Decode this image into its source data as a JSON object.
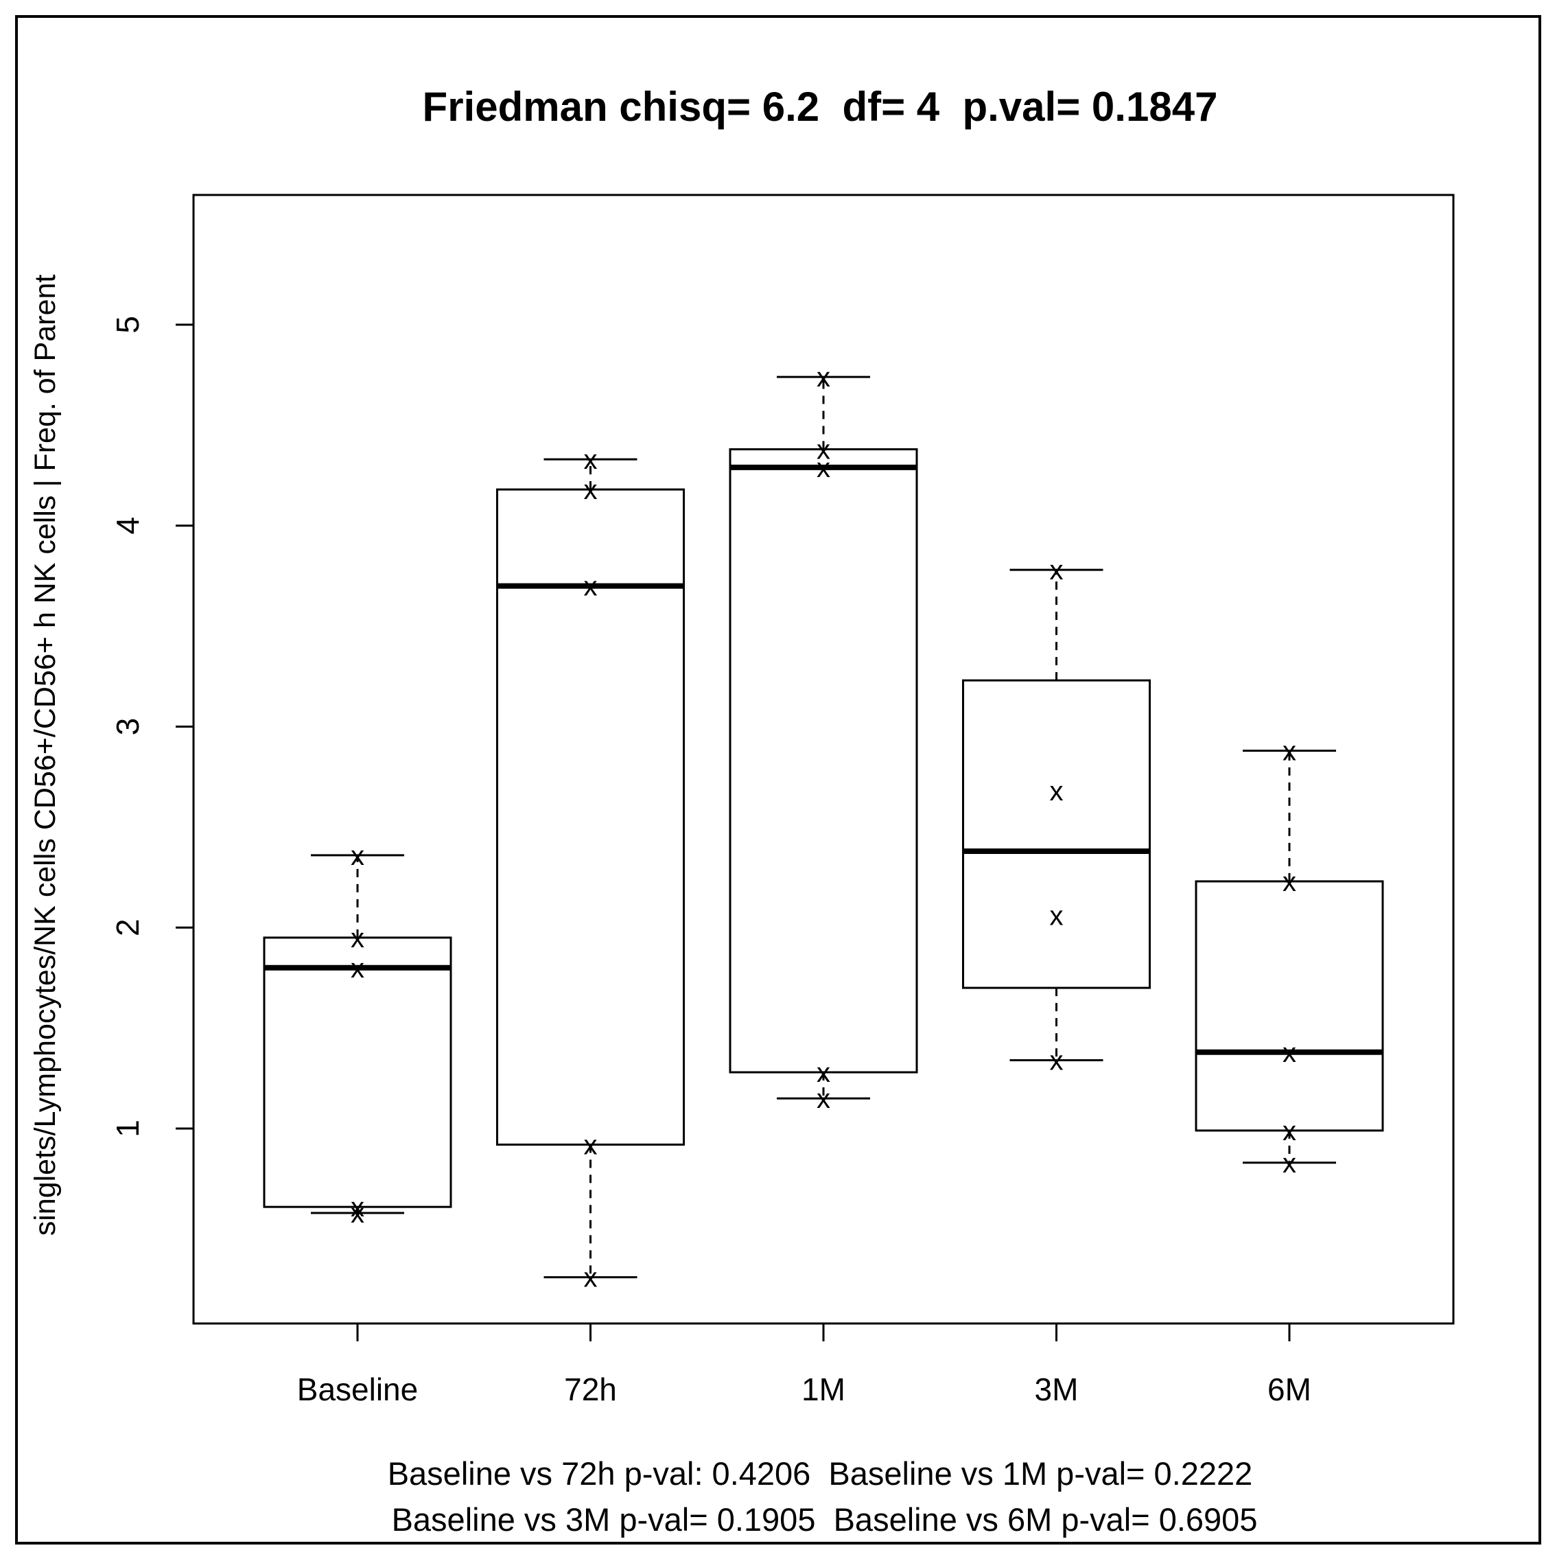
{
  "chart_data": {
    "type": "boxplot",
    "title": "Friedman chisq= 6.2  df= 4  p.val= 0.1847",
    "ylabel": "singlets/Lymphocytes/NK cells CD56+/CD56+ h NK cells | Freq. of Parent",
    "xlabel": "",
    "ylim": [
      0.1,
      5.7
    ],
    "yticks": [
      "1",
      "2",
      "3",
      "4",
      "5"
    ],
    "grid": false,
    "categories": [
      "Baseline",
      "72h",
      "1M",
      "3M",
      "6M"
    ],
    "boxes": [
      {
        "category": "Baseline",
        "whisker_low": 0.58,
        "q1": 0.61,
        "median": 1.8,
        "q3": 1.95,
        "whisker_high": 2.36,
        "points": [
          0.58,
          0.61,
          1.8,
          1.95,
          2.36
        ]
      },
      {
        "category": "72h",
        "whisker_low": 0.26,
        "q1": 0.92,
        "median": 3.7,
        "q3": 4.18,
        "whisker_high": 4.33,
        "points": [
          0.26,
          0.92,
          3.7,
          4.18,
          4.33
        ]
      },
      {
        "category": "1M",
        "whisker_low": 1.15,
        "q1": 1.28,
        "median": 4.29,
        "q3": 4.38,
        "whisker_high": 4.74,
        "points": [
          1.15,
          1.28,
          4.29,
          4.38,
          4.74
        ]
      },
      {
        "category": "3M",
        "whisker_low": 1.34,
        "q1": 1.7,
        "median": 2.38,
        "q3": 3.23,
        "whisker_high": 3.78,
        "points": [
          1.34,
          2.06,
          2.68,
          3.78
        ]
      },
      {
        "category": "6M",
        "whisker_low": 0.83,
        "q1": 0.99,
        "median": 1.38,
        "q3": 2.23,
        "whisker_high": 2.88,
        "points": [
          0.83,
          0.99,
          1.38,
          2.23,
          2.88
        ]
      }
    ],
    "point_marker": "x",
    "footer": [
      "Baseline vs 72h p-val: 0.4206  Baseline vs 1M p-val= 0.2222",
      " Baseline vs 3M p-val= 0.1905  Baseline vs 6M p-val= 0.6905"
    ]
  }
}
